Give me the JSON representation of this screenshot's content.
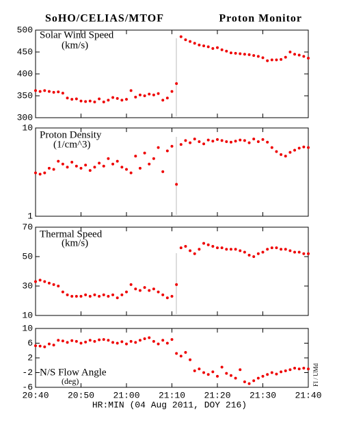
{
  "chart_data": {
    "type": "scatter",
    "title": "SoHO/CELIAS/MTOF",
    "subtitle": "Proton Monitor",
    "xlabel": "HR:MIN (04 Aug 2011, DOY 216)",
    "credit": "FI / UMd",
    "color": "#ee0000",
    "xlim": [
      0,
      60
    ],
    "xticks": [
      {
        "value": 0,
        "label": "20:40"
      },
      {
        "value": 10,
        "label": "20:50"
      },
      {
        "value": 20,
        "label": "21:00"
      },
      {
        "value": 30,
        "label": "21:10"
      },
      {
        "value": 40,
        "label": "21:20"
      },
      {
        "value": 50,
        "label": "21:30"
      },
      {
        "value": 60,
        "label": "21:40"
      }
    ],
    "x": [
      0,
      1,
      2,
      3,
      4,
      5,
      6,
      7,
      8,
      9,
      10,
      11,
      12,
      13,
      14,
      15,
      16,
      17,
      18,
      19,
      20,
      21,
      22,
      23,
      24,
      25,
      26,
      27,
      28,
      29,
      30,
      31,
      32,
      33,
      34,
      35,
      36,
      37,
      38,
      39,
      40,
      41,
      42,
      43,
      44,
      45,
      46,
      47,
      48,
      49,
      50,
      51,
      52,
      53,
      54,
      55,
      56,
      57,
      58,
      59,
      60
    ],
    "panels": [
      {
        "label": "Solar Wind Speed",
        "unit": "(km/s)",
        "ylim": [
          300,
          500
        ],
        "yticks": [
          300,
          350,
          400,
          450,
          500
        ],
        "log": false,
        "values": [
          362,
          360,
          362,
          360,
          358,
          359,
          356,
          345,
          342,
          343,
          338,
          337,
          338,
          336,
          343,
          336,
          340,
          346,
          344,
          340,
          342,
          362,
          347,
          352,
          350,
          354,
          352,
          355,
          340,
          345,
          360,
          378,
          485,
          478,
          474,
          470,
          466,
          464,
          462,
          458,
          460,
          455,
          452,
          448,
          447,
          446,
          445,
          444,
          442,
          440,
          437,
          430,
          432,
          432,
          433,
          438,
          450,
          445,
          443,
          440,
          436
        ]
      },
      {
        "label": "Proton Density",
        "unit": "(1/cm^3)",
        "ylim": [
          1,
          10
        ],
        "yticks": [
          1,
          10
        ],
        "log": true,
        "values": [
          3.1,
          3.0,
          3.1,
          3.5,
          3.4,
          4.2,
          3.9,
          3.6,
          4.1,
          3.7,
          3.5,
          3.8,
          3.3,
          3.6,
          4.0,
          3.7,
          4.5,
          3.9,
          4.2,
          3.6,
          3.4,
          3.1,
          4.8,
          3.5,
          5.2,
          3.9,
          4.5,
          6.0,
          3.2,
          5.5,
          6.2,
          2.3,
          6.5,
          7.2,
          6.8,
          7.5,
          7.0,
          6.6,
          7.3,
          7.1,
          7.4,
          7.2,
          7.0,
          6.9,
          7.1,
          7.3,
          7.2,
          6.8,
          7.5,
          7.0,
          7.4,
          6.9,
          6.0,
          5.4,
          5.0,
          4.8,
          5.3,
          5.6,
          5.9,
          6.1,
          6.0
        ]
      },
      {
        "label": "Thermal Speed",
        "unit": "(km/s)",
        "ylim": [
          10,
          70
        ],
        "yticks": [
          10,
          30,
          50,
          70
        ],
        "log": false,
        "values": [
          33,
          34,
          33,
          32,
          31,
          30,
          26,
          24,
          23,
          23,
          23,
          24,
          23,
          24,
          23,
          24,
          23,
          24,
          22,
          24,
          26,
          31,
          28,
          27,
          29,
          27,
          28,
          26,
          24,
          22,
          23,
          31,
          56,
          57,
          54,
          52,
          55,
          59,
          58,
          57,
          56,
          56,
          55,
          55,
          55,
          54,
          53,
          51,
          50,
          52,
          53,
          55,
          56,
          56,
          55,
          55,
          54,
          53,
          53,
          52,
          52
        ]
      },
      {
        "label": "N/S Flow Angle",
        "unit": "(deg)",
        "ylim": [
          -6,
          10
        ],
        "yticks": [
          -6,
          -2,
          2,
          6,
          10
        ],
        "log": false,
        "values": [
          5.3,
          5.2,
          5.0,
          5.8,
          5.5,
          6.8,
          6.6,
          6.2,
          6.7,
          6.5,
          6.0,
          6.3,
          6.8,
          6.5,
          6.9,
          7.0,
          6.8,
          6.2,
          6.0,
          6.4,
          5.8,
          6.5,
          6.2,
          6.8,
          7.2,
          7.5,
          6.5,
          5.8,
          6.8,
          6.0,
          7.0,
          3.2,
          2.5,
          3.5,
          1.5,
          -1.5,
          -1.0,
          -2.0,
          -2.5,
          -1.8,
          -3.0,
          -0.5,
          -2.2,
          -2.8,
          -3.5,
          -1.2,
          -4.5,
          -5.0,
          -4.2,
          -3.5,
          -3.0,
          -2.5,
          -2.0,
          -2.4,
          -1.8,
          -1.5,
          -1.2,
          -0.8,
          -1.0,
          -0.8,
          -1.0
        ]
      }
    ]
  }
}
